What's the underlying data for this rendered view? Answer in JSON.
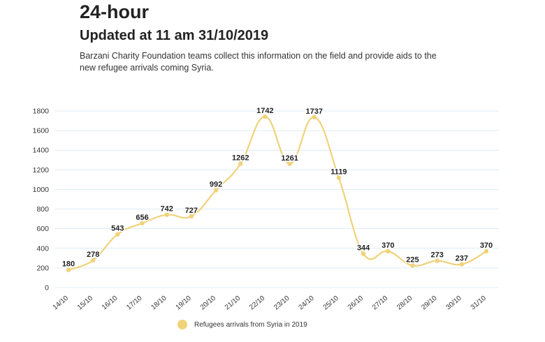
{
  "header": {
    "title": "24-hour",
    "subtitle": "Updated at 11 am 31/10/2019",
    "description": "Barzani Charity Foundation teams collect this information on the field and provide aids to the new refugee arrivals coming Syria."
  },
  "colors": {
    "series": "#f0d27a",
    "grid": "#dcecf4",
    "text": "#222222"
  },
  "chart_data": {
    "type": "line",
    "categories": [
      "14/10",
      "15/10",
      "16/10",
      "17/10",
      "18/10",
      "19/10",
      "20/10",
      "21/10",
      "22/10",
      "23/10",
      "24/10",
      "25/10",
      "26/10",
      "27/10",
      "28/10",
      "29/10",
      "30/10",
      "31/10"
    ],
    "series": [
      {
        "name": "Refugees arrivals from Syria in 2019",
        "values": [
          180,
          278,
          543,
          656,
          742,
          727,
          992,
          1262,
          1742,
          1261,
          1737,
          1119,
          344,
          370,
          225,
          273,
          237,
          370
        ]
      }
    ],
    "yticks": [
      0,
      200,
      400,
      600,
      800,
      1000,
      1200,
      1400,
      1600,
      1800
    ],
    "ylim": [
      0,
      1800
    ],
    "grid": true,
    "legend": "bottom",
    "data_labels": true
  }
}
